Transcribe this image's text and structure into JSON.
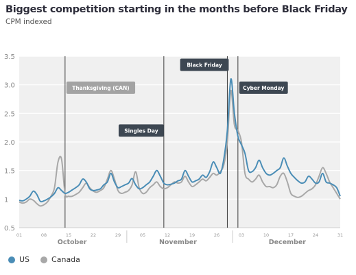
{
  "header": {
    "title": "Biggest competition starting in the months before Black Friday",
    "subtitle": "CPM indexed"
  },
  "colors": {
    "us": "#4a8db6",
    "canada": "#a8a8a8",
    "plot_bg": "#f0f0f0",
    "annotation_bg": "#3d4752",
    "annotation_light": "#a3a3a3"
  },
  "chart_data": {
    "type": "line",
    "ylim": [
      0.5,
      3.5
    ],
    "yticks": [
      "0.5",
      "1",
      "1.5",
      "2.0",
      "2.5",
      "3.0",
      "3.5"
    ],
    "ytick_values": [
      0.5,
      1,
      1.5,
      2.0,
      2.5,
      3.0,
      3.5
    ],
    "xlim": [
      0,
      91
    ],
    "day_ticks": [
      {
        "label": "01",
        "x": 0
      },
      {
        "label": "08",
        "x": 7
      },
      {
        "label": "15",
        "x": 14
      },
      {
        "label": "22",
        "x": 21
      },
      {
        "label": "29",
        "x": 28
      },
      {
        "label": "05",
        "x": 35
      },
      {
        "label": "12",
        "x": 42
      },
      {
        "label": "19",
        "x": 49
      },
      {
        "label": "26",
        "x": 56
      },
      {
        "label": "03",
        "x": 63
      },
      {
        "label": "10",
        "x": 70
      },
      {
        "label": "17",
        "x": 77
      },
      {
        "label": "24",
        "x": 84
      },
      {
        "label": "31",
        "x": 91
      }
    ],
    "months": [
      {
        "label": "October",
        "x": 15
      },
      {
        "label": "November",
        "x": 45
      },
      {
        "label": "December",
        "x": 76
      }
    ],
    "month_separators": [
      30.5,
      60.5
    ],
    "annotations": [
      {
        "label": "Thanksgiving (CAN)",
        "x": 13,
        "box_y": 2.95,
        "style": "light"
      },
      {
        "label": "Singles Day",
        "x": 41,
        "box_y": 2.2,
        "style": "dark"
      },
      {
        "label": "Black Friday",
        "x": 59,
        "box_y": 3.35,
        "style": "dark"
      },
      {
        "label": "Cyber Monday",
        "x": 62,
        "box_y": 2.95,
        "style": "dark"
      }
    ],
    "series": [
      {
        "name": "US",
        "color": "#4a8db6",
        "values": [
          0.98,
          0.97,
          1.0,
          1.05,
          1.14,
          1.08,
          0.96,
          0.97,
          1.0,
          1.04,
          1.1,
          1.2,
          1.15,
          1.1,
          1.12,
          1.16,
          1.2,
          1.25,
          1.35,
          1.3,
          1.18,
          1.15,
          1.16,
          1.18,
          1.25,
          1.3,
          1.45,
          1.3,
          1.2,
          1.22,
          1.25,
          1.28,
          1.36,
          1.25,
          1.18,
          1.2,
          1.25,
          1.3,
          1.4,
          1.5,
          1.4,
          1.28,
          1.25,
          1.26,
          1.28,
          1.32,
          1.35,
          1.5,
          1.4,
          1.3,
          1.32,
          1.35,
          1.42,
          1.38,
          1.48,
          1.65,
          1.55,
          1.45,
          1.7,
          2.2,
          3.1,
          2.5,
          2.1,
          1.95,
          1.8,
          1.5,
          1.48,
          1.55,
          1.68,
          1.55,
          1.45,
          1.42,
          1.45,
          1.5,
          1.55,
          1.72,
          1.58,
          1.45,
          1.38,
          1.32,
          1.28,
          1.3,
          1.4,
          1.35,
          1.28,
          1.3,
          1.45,
          1.3,
          1.28,
          1.25,
          1.2,
          1.05
        ]
      },
      {
        "name": "Canada",
        "color": "#a8a8a8",
        "values": [
          0.95,
          0.93,
          0.95,
          1.0,
          0.98,
          0.92,
          0.88,
          0.9,
          0.95,
          1.05,
          1.2,
          1.65,
          1.7,
          1.1,
          1.05,
          1.05,
          1.08,
          1.12,
          1.2,
          1.28,
          1.2,
          1.14,
          1.12,
          1.15,
          1.2,
          1.35,
          1.5,
          1.35,
          1.15,
          1.1,
          1.12,
          1.15,
          1.25,
          1.48,
          1.2,
          1.1,
          1.12,
          1.2,
          1.25,
          1.3,
          1.22,
          1.18,
          1.2,
          1.25,
          1.3,
          1.28,
          1.3,
          1.4,
          1.3,
          1.22,
          1.25,
          1.3,
          1.35,
          1.32,
          1.38,
          1.45,
          1.42,
          1.48,
          1.6,
          2.0,
          2.9,
          2.3,
          2.2,
          2.0,
          1.45,
          1.35,
          1.3,
          1.35,
          1.42,
          1.3,
          1.22,
          1.22,
          1.2,
          1.25,
          1.4,
          1.45,
          1.3,
          1.1,
          1.05,
          1.03,
          1.05,
          1.1,
          1.15,
          1.18,
          1.25,
          1.4,
          1.55,
          1.45,
          1.3,
          1.2,
          1.1,
          1.0
        ]
      }
    ],
    "legend": [
      {
        "name": "US",
        "color": "#4a8db6"
      },
      {
        "name": "Canada",
        "color": "#a8a8a8"
      }
    ],
    "grid": true
  }
}
